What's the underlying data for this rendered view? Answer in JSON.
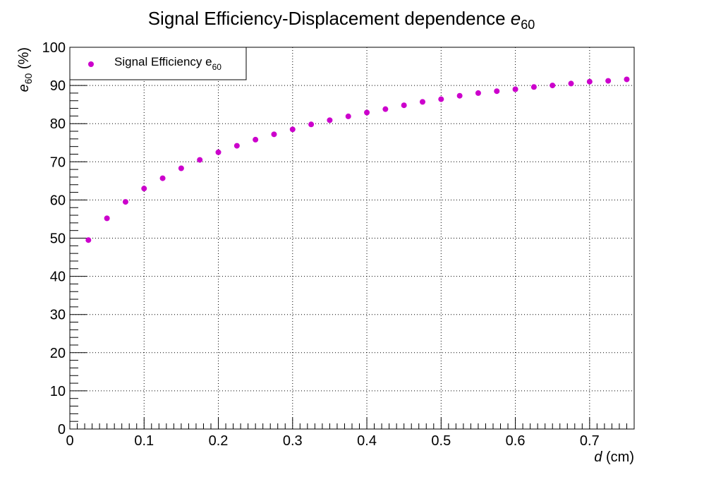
{
  "chart_data": {
    "type": "scatter",
    "title": "Signal Efficiency-Displacement dependence",
    "title_symbol": "e",
    "title_subscript": "60",
    "xlabel_symbol": "d",
    "xlabel_unit": "(cm)",
    "ylabel_symbol": "e",
    "ylabel_subscript": "60",
    "ylabel_unit": "(%)",
    "xlim": [
      0,
      0.76
    ],
    "ylim": [
      0,
      100
    ],
    "x_ticks": [
      "0",
      "0.1",
      "0.2",
      "0.3",
      "0.4",
      "0.5",
      "0.6",
      "0.7"
    ],
    "y_ticks": [
      "0",
      "10",
      "20",
      "30",
      "40",
      "50",
      "60",
      "70",
      "80",
      "90",
      "100"
    ],
    "grid": true,
    "legend_position": "top-left",
    "series": [
      {
        "name": "Signal Efficiency e",
        "name_subscript": "60",
        "color": "#cc00cc",
        "x": [
          0.025,
          0.05,
          0.075,
          0.1,
          0.125,
          0.15,
          0.175,
          0.2,
          0.225,
          0.25,
          0.275,
          0.3,
          0.325,
          0.35,
          0.375,
          0.4,
          0.425,
          0.45,
          0.475,
          0.5,
          0.525,
          0.55,
          0.575,
          0.6,
          0.625,
          0.65,
          0.675,
          0.7,
          0.725,
          0.75
        ],
        "y": [
          49.5,
          55.2,
          59.5,
          63.0,
          65.7,
          68.3,
          70.5,
          72.5,
          74.2,
          75.8,
          77.2,
          78.5,
          79.8,
          80.9,
          81.9,
          82.9,
          83.8,
          84.8,
          85.7,
          86.4,
          87.3,
          88.0,
          88.5,
          89.0,
          89.6,
          90.0,
          90.5,
          91.0,
          91.2,
          91.6
        ]
      }
    ]
  }
}
